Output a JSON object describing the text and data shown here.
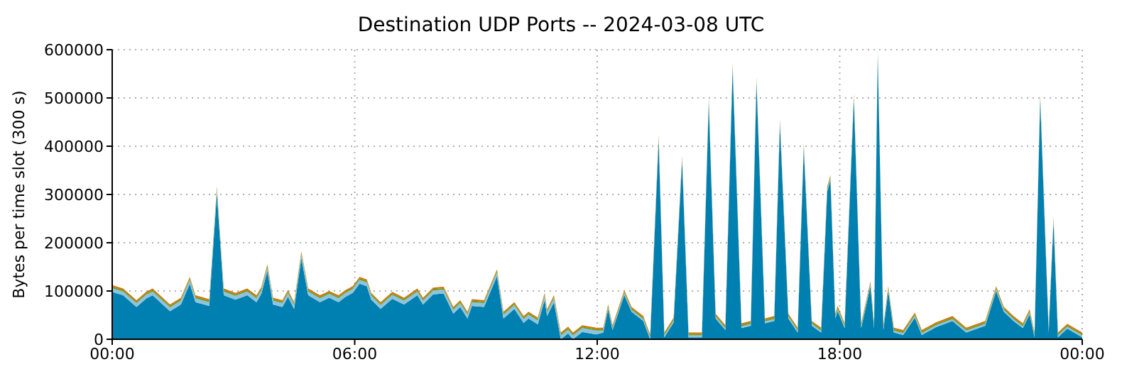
{
  "chart_data": {
    "type": "area",
    "stacked": true,
    "title": "Destination UDP Ports -- 2024-03-08 UTC",
    "ylabel": "Bytes per time slot (300 s)",
    "x": [
      0,
      0.27,
      0.6,
      0.85,
      1.0,
      1.43,
      1.7,
      1.92,
      2.06,
      2.4,
      2.59,
      2.76,
      3.05,
      3.34,
      3.57,
      3.69,
      3.84,
      3.98,
      4.21,
      4.35,
      4.5,
      4.68,
      4.85,
      5.14,
      5.37,
      5.6,
      5.77,
      5.95,
      6.12,
      6.3,
      6.41,
      6.64,
      6.93,
      7.22,
      7.55,
      7.69,
      7.94,
      8.2,
      8.44,
      8.61,
      8.79,
      8.9,
      9.2,
      9.52,
      9.68,
      9.95,
      10.18,
      10.3,
      10.53,
      10.7,
      10.76,
      10.93,
      11.1,
      11.28,
      11.4,
      11.63,
      11.98,
      12.15,
      12.27,
      12.38,
      12.67,
      12.85,
      13.14,
      13.31,
      13.52,
      13.66,
      13.89,
      14.1,
      14.26,
      14.59,
      14.76,
      14.93,
      15.17,
      15.35,
      15.57,
      15.8,
      15.94,
      16.15,
      16.38,
      16.52,
      16.73,
      16.96,
      17.11,
      17.31,
      17.54,
      17.69,
      17.77,
      17.89,
      17.95,
      18.12,
      18.35,
      18.53,
      18.76,
      18.85,
      18.94,
      19.08,
      19.2,
      19.34,
      19.57,
      19.86,
      20.03,
      20.38,
      20.79,
      21.13,
      21.6,
      21.87,
      22.06,
      22.3,
      22.53,
      22.7,
      22.82,
      22.96,
      23.17,
      23.29,
      23.4,
      23.63,
      24
    ],
    "series": [
      {
        "color": "#0080b0",
        "values": [
          98000,
          91000,
          67000,
          85000,
          91000,
          58000,
          72000,
          115000,
          77000,
          69000,
          302000,
          91000,
          82000,
          91000,
          77000,
          94000,
          141000,
          72000,
          67000,
          88000,
          63000,
          168000,
          91000,
          77000,
          86000,
          77000,
          88000,
          96000,
          115000,
          110000,
          82000,
          63000,
          84000,
          72000,
          91000,
          72000,
          93000,
          95000,
          53000,
          67000,
          43000,
          69000,
          67000,
          131000,
          43000,
          63000,
          34000,
          43000,
          31000,
          82000,
          48000,
          77000,
          0,
          12000,
          0,
          15000,
          10000,
          14000,
          62000,
          19000,
          92000,
          57000,
          38000,
          0,
          413000,
          4000,
          35000,
          370000,
          4000,
          4000,
          490000,
          43000,
          19000,
          561000,
          23000,
          28000,
          533000,
          33000,
          38000,
          446000,
          43000,
          14000,
          396000,
          28000,
          14000,
          306000,
          330000,
          43000,
          59000,
          23000,
          498000,
          23000,
          110000,
          23000,
          588000,
          19000,
          100000,
          14000,
          9000,
          45000,
          9000,
          25000,
          38000,
          14000,
          28000,
          100000,
          57000,
          38000,
          23000,
          52000,
          4000,
          497000,
          14000,
          244000,
          4000,
          22000,
          4000
        ]
      },
      {
        "color": "#8ec3de",
        "values": [
          8000,
          8000,
          8000,
          8000,
          8000,
          8000,
          8000,
          8000,
          8000,
          8000,
          8000,
          8000,
          8000,
          8000,
          8000,
          8000,
          8000,
          8000,
          8000,
          8000,
          8000,
          8000,
          8000,
          8000,
          8000,
          8000,
          8000,
          8000,
          8000,
          8000,
          8000,
          8000,
          8000,
          8000,
          8000,
          8000,
          8000,
          8000,
          8000,
          8000,
          8000,
          8000,
          8000,
          8000,
          8000,
          8000,
          8000,
          8000,
          8000,
          8000,
          8000,
          8000,
          8000,
          8000,
          8000,
          8000,
          8000,
          4000,
          4000,
          4000,
          4000,
          4000,
          4000,
          4000,
          4000,
          4000,
          4000,
          4000,
          4000,
          4000,
          4000,
          4000,
          4000,
          4000,
          4000,
          4000,
          4000,
          4000,
          4000,
          4000,
          4000,
          4000,
          4000,
          4000,
          4000,
          4000,
          4000,
          4000,
          4000,
          4000,
          4000,
          4000,
          4000,
          4000,
          4000,
          4000,
          4000,
          4000,
          4000,
          4000,
          4000,
          4000,
          4000,
          4000,
          4000,
          4000,
          4000,
          4000,
          4000,
          4000,
          4000,
          4000,
          4000,
          4000,
          4000,
          4000,
          4000
        ]
      },
      {
        "color": "#6a9a1f",
        "values": [
          3000,
          3000,
          3000,
          3000,
          3000,
          3000,
          3000,
          3000,
          3000,
          3000,
          3000,
          3000,
          3000,
          3000,
          3000,
          3000,
          3000,
          3000,
          3000,
          3000,
          3000,
          3000,
          3000,
          3000,
          3000,
          3000,
          3000,
          3000,
          3000,
          3000,
          3000,
          3000,
          3000,
          3000,
          3000,
          3000,
          3000,
          3000,
          3000,
          3000,
          3000,
          3000,
          3000,
          3000,
          3000,
          3000,
          3000,
          3000,
          3000,
          3000,
          3000,
          3000,
          3000,
          3000,
          3000,
          3000,
          3000,
          3000,
          3000,
          3000,
          3000,
          3000,
          3000,
          3000,
          3000,
          3000,
          3000,
          3000,
          3000,
          3000,
          3000,
          3000,
          3000,
          3000,
          3000,
          3000,
          3000,
          3000,
          3000,
          3000,
          3000,
          3000,
          3000,
          3000,
          3000,
          3000,
          3000,
          3000,
          3000,
          3000,
          3000,
          3000,
          3000,
          3000,
          3000,
          3000,
          3000,
          3000,
          3000,
          3000,
          3000,
          3000,
          3000,
          3000,
          3000,
          3000,
          3000,
          3000,
          3000,
          3000,
          3000,
          3000,
          3000,
          3000,
          3000,
          3000,
          3000
        ]
      },
      {
        "color": "#d36f00",
        "values": [
          3000,
          3000,
          3000,
          3000,
          3000,
          3000,
          3000,
          3000,
          3000,
          3000,
          3000,
          3000,
          3000,
          3000,
          3000,
          3000,
          3000,
          3000,
          3000,
          3000,
          3000,
          3000,
          3000,
          3000,
          3000,
          3000,
          3000,
          3000,
          3000,
          3000,
          3000,
          3000,
          3000,
          3000,
          3000,
          3000,
          3000,
          3000,
          3000,
          3000,
          3000,
          3000,
          3000,
          3000,
          3000,
          3000,
          3000,
          3000,
          3000,
          3000,
          3000,
          3000,
          3000,
          3000,
          3000,
          3000,
          3000,
          3000,
          3000,
          3000,
          3000,
          3000,
          3000,
          3000,
          3000,
          3000,
          3000,
          3000,
          3000,
          3000,
          3000,
          3000,
          3000,
          3000,
          3000,
          3000,
          3000,
          3000,
          3000,
          3000,
          3000,
          3000,
          3000,
          3000,
          3000,
          3000,
          3000,
          3000,
          3000,
          3000,
          3000,
          3000,
          3000,
          3000,
          3000,
          3000,
          3000,
          3000,
          3000,
          3000,
          3000,
          3000,
          3000,
          3000,
          3000,
          3000,
          3000,
          3000,
          3000,
          3000,
          3000,
          3000,
          3000,
          3000,
          3000,
          3000,
          3000
        ]
      }
    ],
    "xlim": [
      0,
      24
    ],
    "xticks": [
      {
        "value": 0,
        "label": "00:00"
      },
      {
        "value": 6,
        "label": "06:00"
      },
      {
        "value": 12,
        "label": "12:00"
      },
      {
        "value": 18,
        "label": "18:00"
      },
      {
        "value": 24,
        "label": "00:00"
      }
    ],
    "ylim": [
      0,
      600000
    ],
    "yticks": [
      0,
      100000,
      200000,
      300000,
      400000,
      500000,
      600000
    ],
    "grid": true,
    "legend": false
  }
}
